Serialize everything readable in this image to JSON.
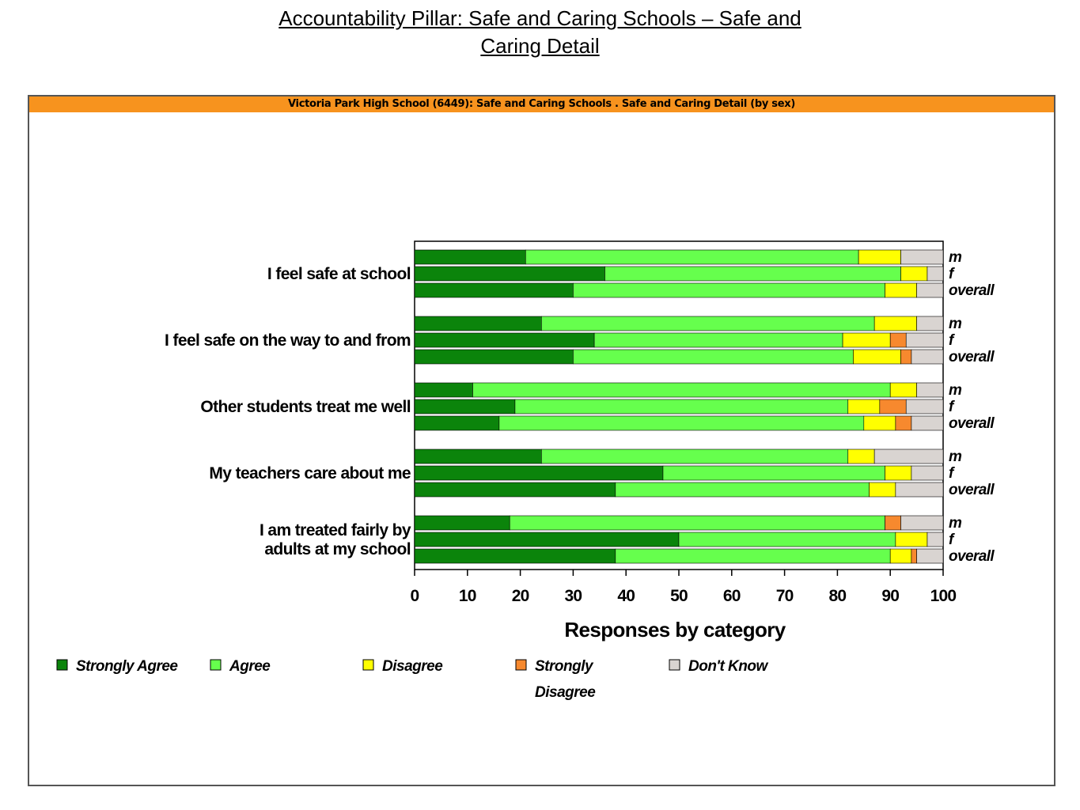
{
  "slide": {
    "title_line1": "Accountability Pillar:  Safe and Caring Schools – Safe and",
    "title_line2": "Caring Detail"
  },
  "chart_header": "Victoria Park High School (6449): Safe and Caring Schools . Safe and Caring Detail (by sex)",
  "chart_data": {
    "type": "bar",
    "orientation": "horizontal",
    "stacked": true,
    "xlabel": "Responses by category",
    "xlim": [
      0,
      100
    ],
    "xticks": [
      "0",
      "10",
      "20",
      "30",
      "40",
      "50",
      "60",
      "70",
      "80",
      "90",
      "100"
    ],
    "grid": false,
    "legend_position": "bottom",
    "series": [
      {
        "name": "Strongly Agree",
        "color": "#0b840b"
      },
      {
        "name": "Agree",
        "color": "#66ff4d"
      },
      {
        "name": "Disagree",
        "color": "#ffff00"
      },
      {
        "name": "Strongly Disagree",
        "color": "#f7892e"
      },
      {
        "name": "Don't Know",
        "color": "#d9d4d1"
      }
    ],
    "legend_labels": [
      "Strongly Agree",
      "Agree",
      "Disagree",
      "Strongly",
      "Disagree",
      "Don't Know"
    ],
    "groups": [
      {
        "category": "I feel safe at school",
        "label_lines": [
          "I feel safe at school"
        ],
        "rows": [
          {
            "sex": "m",
            "values": [
              21,
              63,
              8,
              0,
              8
            ]
          },
          {
            "sex": "f",
            "values": [
              36,
              56,
              5,
              0,
              3
            ]
          },
          {
            "sex": "overall",
            "values": [
              30,
              59,
              6,
              0,
              5
            ]
          }
        ]
      },
      {
        "category": "I feel safe on the way to and from",
        "label_lines": [
          "I feel safe on the way to and from"
        ],
        "rows": [
          {
            "sex": "m",
            "values": [
              24,
              63,
              8,
              0,
              5
            ]
          },
          {
            "sex": "f",
            "values": [
              34,
              47,
              9,
              3,
              7
            ]
          },
          {
            "sex": "overall",
            "values": [
              30,
              53,
              9,
              2,
              6
            ]
          }
        ]
      },
      {
        "category": "Other students treat me well",
        "label_lines": [
          "Other students treat me well"
        ],
        "rows": [
          {
            "sex": "m",
            "values": [
              11,
              79,
              5,
              0,
              5
            ]
          },
          {
            "sex": "f",
            "values": [
              19,
              63,
              6,
              5,
              7
            ]
          },
          {
            "sex": "overall",
            "values": [
              16,
              69,
              6,
              3,
              6
            ]
          }
        ]
      },
      {
        "category": "My teachers care about me",
        "label_lines": [
          "My teachers care about me"
        ],
        "rows": [
          {
            "sex": "m",
            "values": [
              24,
              58,
              5,
              0,
              13
            ]
          },
          {
            "sex": "f",
            "values": [
              47,
              42,
              5,
              0,
              6
            ]
          },
          {
            "sex": "overall",
            "values": [
              38,
              48,
              5,
              0,
              9
            ]
          }
        ]
      },
      {
        "category": "I am treated fairly by adults at my school",
        "label_lines": [
          "I am treated fairly by",
          "adults at my school"
        ],
        "rows": [
          {
            "sex": "m",
            "values": [
              18,
              71,
              0,
              3,
              8
            ]
          },
          {
            "sex": "f",
            "values": [
              50,
              41,
              6,
              0,
              3
            ]
          },
          {
            "sex": "overall",
            "values": [
              38,
              52,
              4,
              1,
              5
            ]
          }
        ]
      }
    ]
  }
}
